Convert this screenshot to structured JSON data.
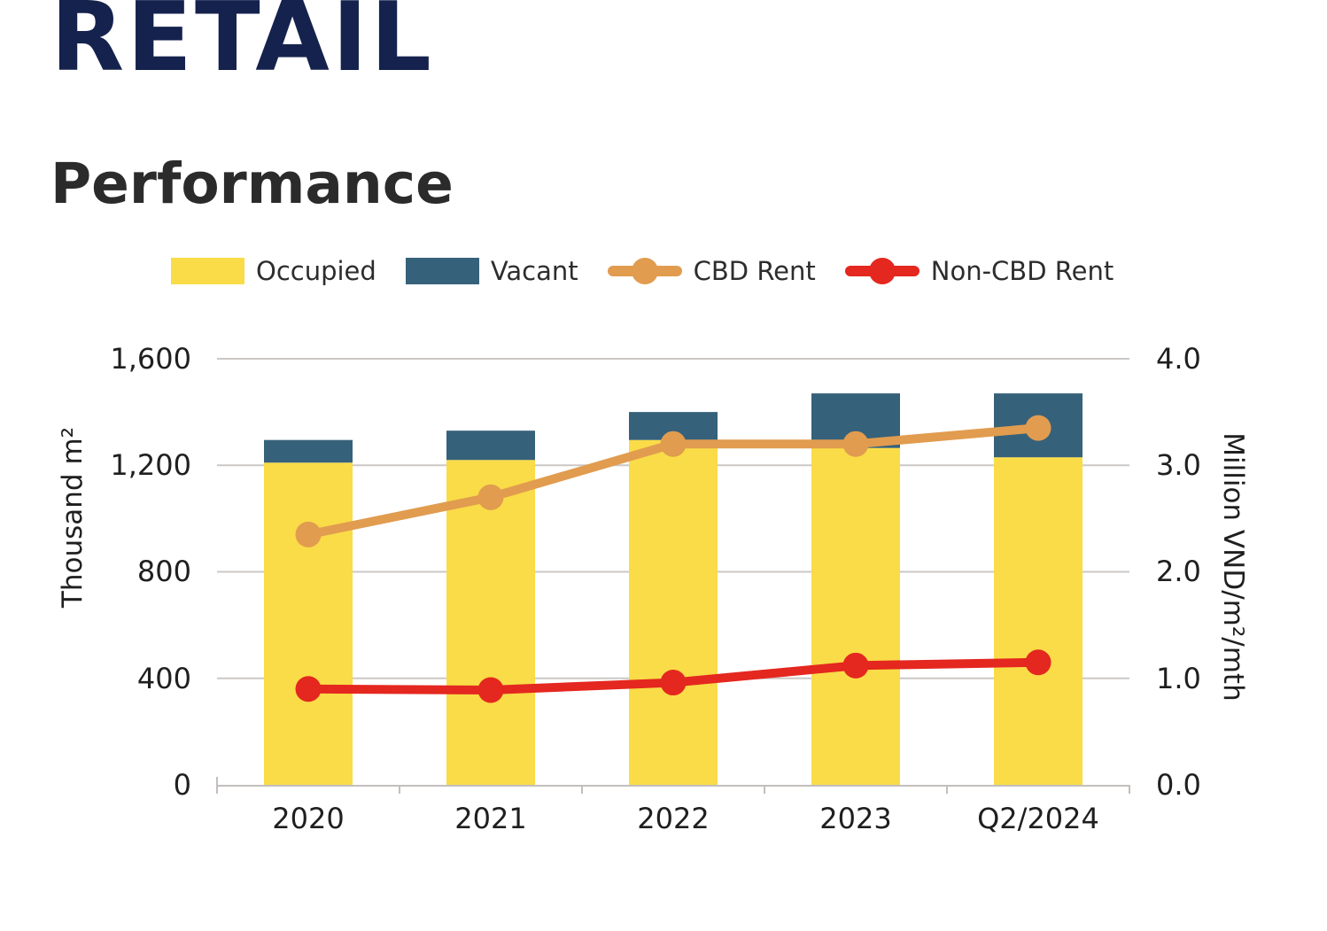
{
  "header": {
    "title": "RETAIL",
    "subtitle": "Performance"
  },
  "chart_data": {
    "type": "combo",
    "title": "Performance",
    "categories": [
      "2020",
      "2021",
      "2022",
      "2023",
      "Q2/2024"
    ],
    "series": [
      {
        "name": "Occupied",
        "type": "bar-stack",
        "axis": "left",
        "color": "#F9DC48",
        "values": [
          1210,
          1220,
          1295,
          1265,
          1230
        ]
      },
      {
        "name": "Vacant",
        "type": "bar-stack",
        "axis": "left",
        "color": "#36617B",
        "values": [
          85,
          110,
          105,
          205,
          240
        ]
      },
      {
        "name": "CBD Rent",
        "type": "line",
        "axis": "right",
        "color": "#E19C4F",
        "values": [
          2.35,
          2.7,
          3.2,
          3.2,
          3.35
        ]
      },
      {
        "name": "Non-CBD Rent",
        "type": "line",
        "axis": "right",
        "color": "#E4271F",
        "values": [
          0.9,
          0.89,
          0.96,
          1.12,
          1.15
        ]
      }
    ],
    "left_axis": {
      "label": "Thousand m²",
      "min": 0,
      "max": 1600,
      "ticks": [
        "0",
        "400",
        "800",
        "1,200",
        "1,600"
      ]
    },
    "right_axis": {
      "label": "Million VND/m²/mth",
      "min": 0,
      "max": 4,
      "ticks": [
        "0.0",
        "1.0",
        "2.0",
        "3.0",
        "4.0"
      ]
    },
    "legend_position": "top",
    "grid": "horizontal",
    "colors": {
      "grid": "#CBC8C6",
      "axis": "#C2BFBD",
      "title": "#15224D",
      "text": "#2d2d2d"
    }
  }
}
